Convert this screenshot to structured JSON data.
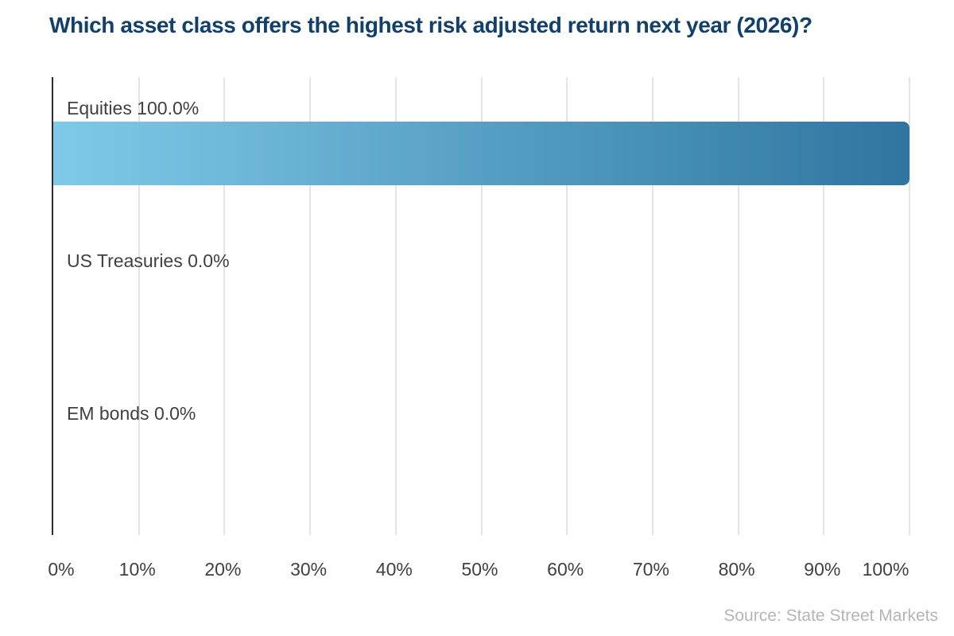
{
  "title": "Which asset class offers the highest risk adjusted return next year (2026)?",
  "source": "Source: State Street Markets",
  "chart_data": {
    "type": "bar",
    "orientation": "horizontal",
    "title": "Which asset class offers the highest risk adjusted return next year (2026)?",
    "categories": [
      "Equities",
      "US Treasuries",
      "EM bonds"
    ],
    "values": [
      100.0,
      0.0,
      0.0
    ],
    "bar_labels": [
      "Equities 100.0%",
      "US Treasuries 0.0%",
      "EM bonds 0.0%"
    ],
    "x_ticks": [
      "0%",
      "10%",
      "20%",
      "30%",
      "40%",
      "50%",
      "60%",
      "70%",
      "80%",
      "90%",
      "100%"
    ],
    "xlim": [
      0,
      100
    ],
    "grid": true,
    "legend": "none",
    "xlabel": "",
    "ylabel": "",
    "colors": {
      "title": "#10406b",
      "bar_gradient_start": "#7fc9e8",
      "bar_gradient_end": "#2e76a0",
      "label": "#404040",
      "gridline": "#e4e4e4",
      "axis_line": "#2d2d2d",
      "source": "#b5b5b5"
    }
  }
}
